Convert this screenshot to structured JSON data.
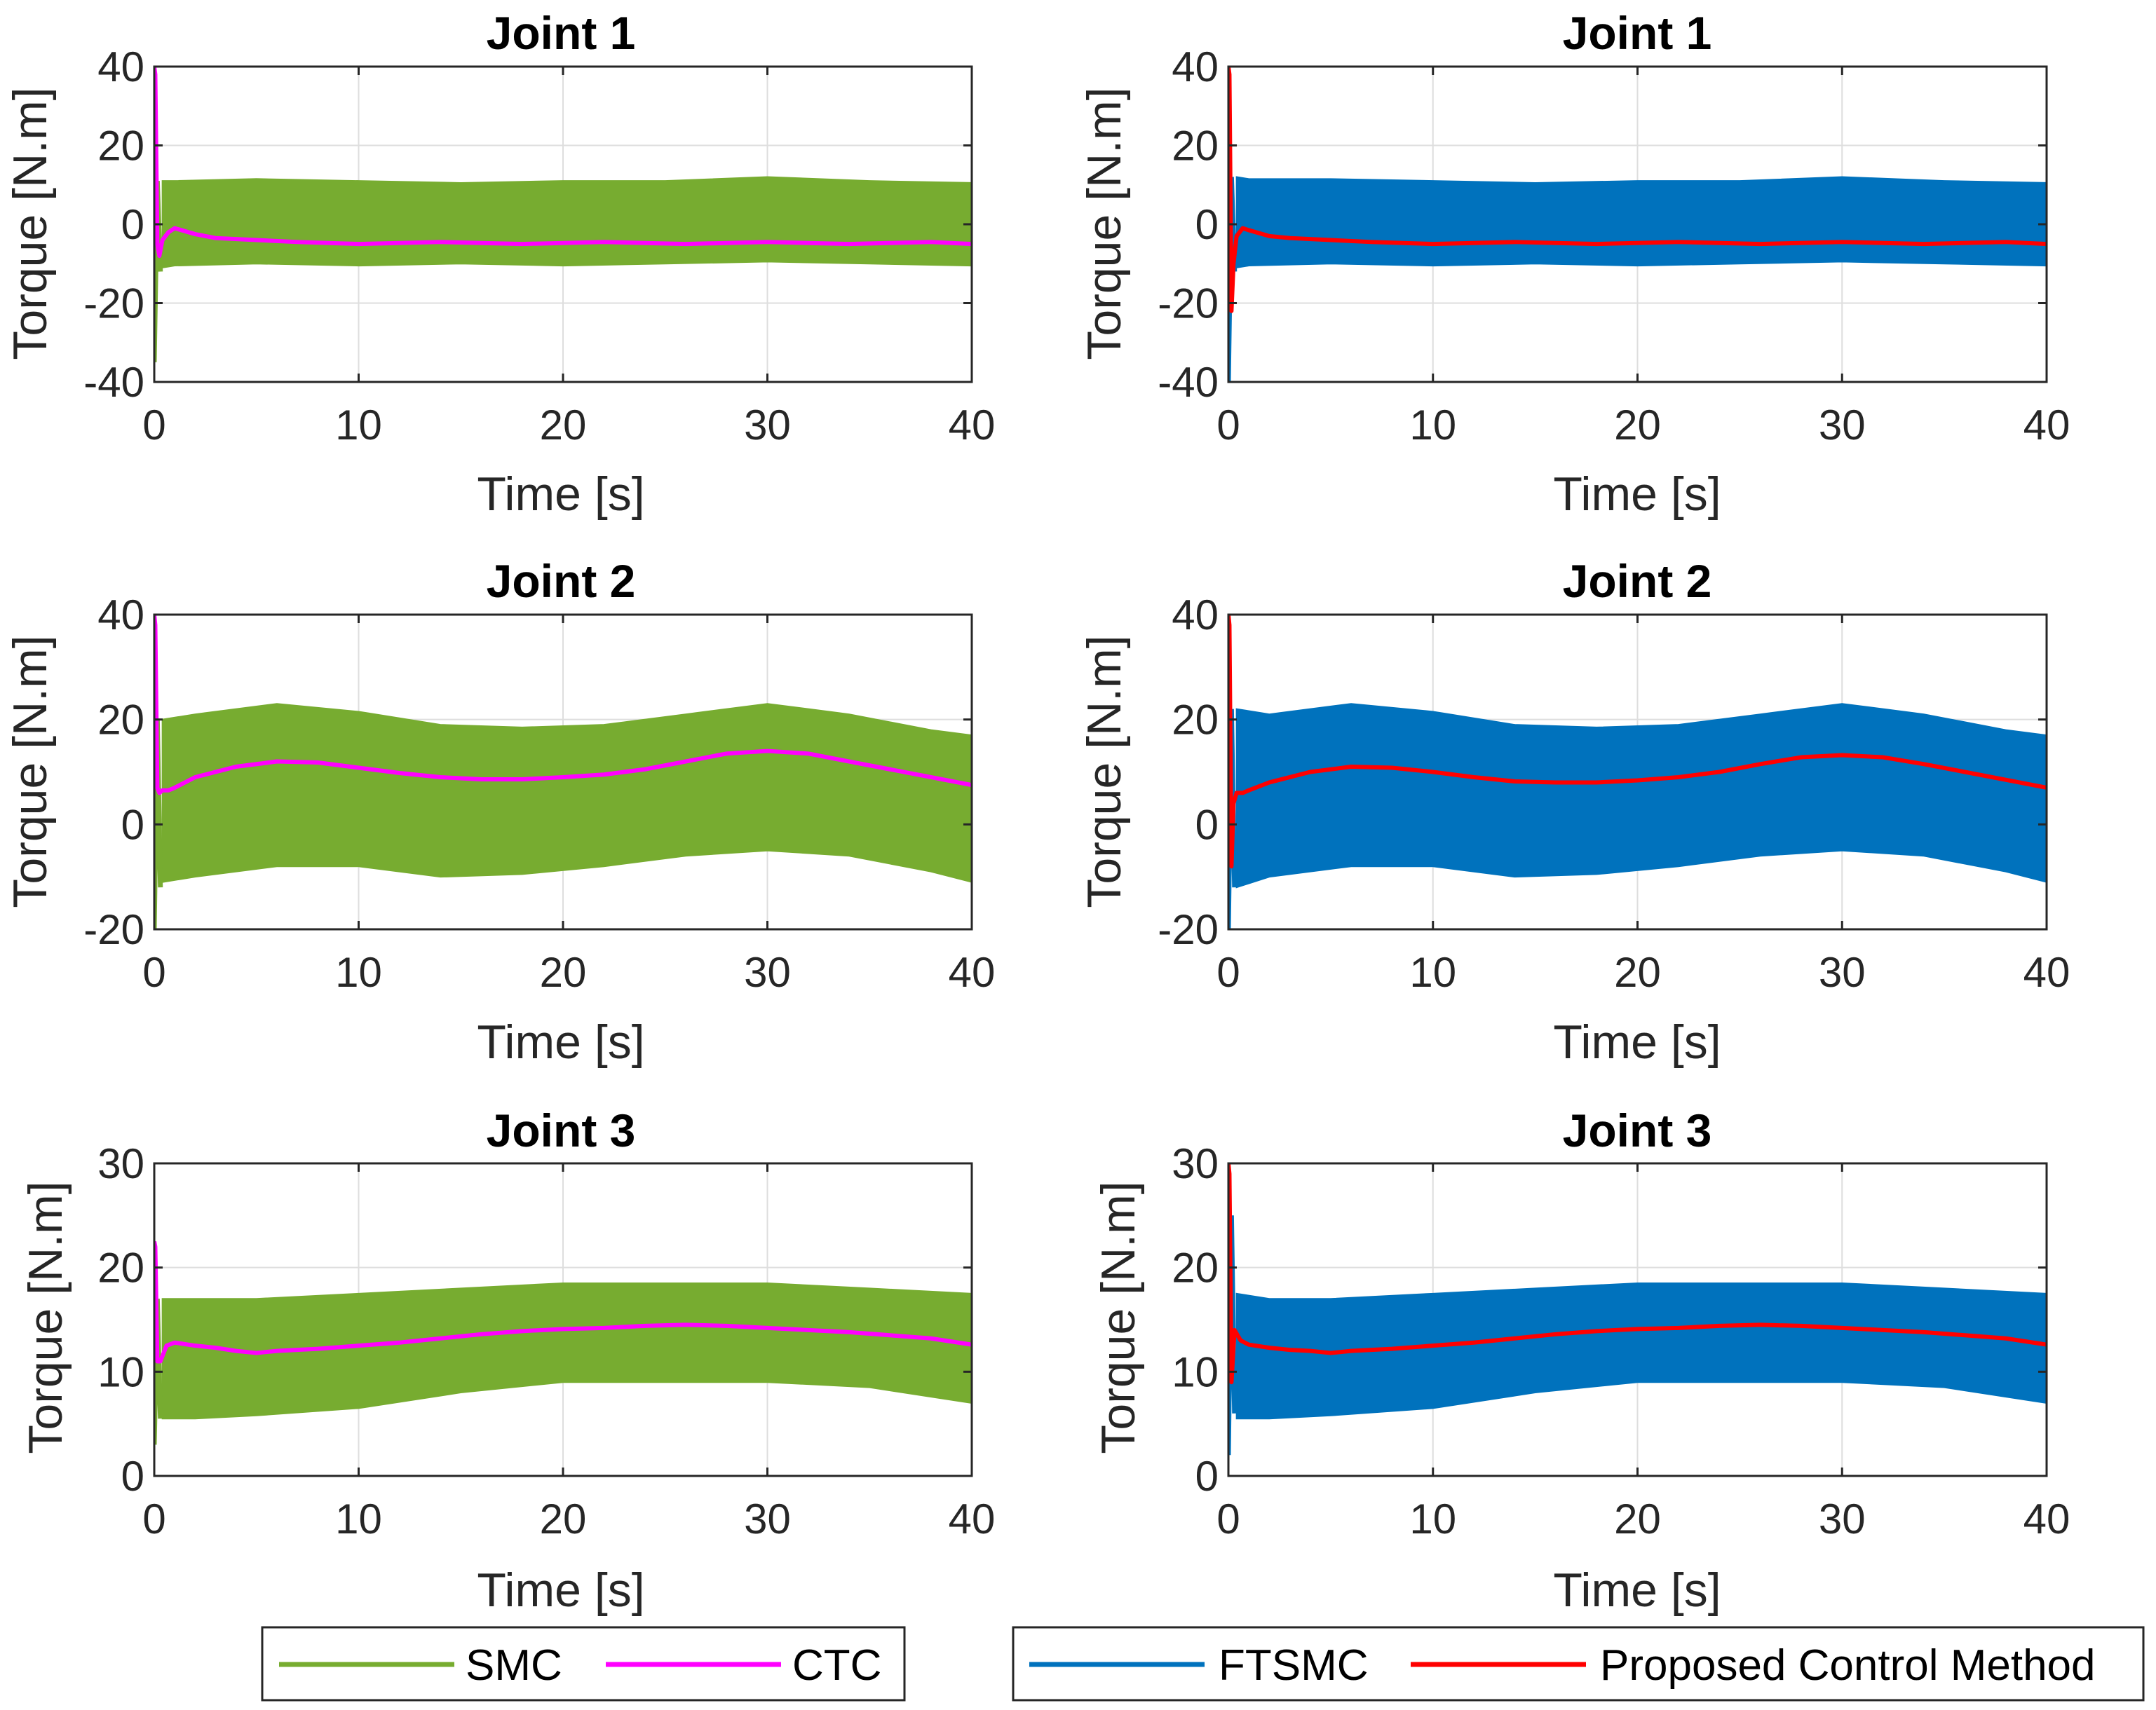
{
  "colors": {
    "smc": "#77ac30",
    "ctc": "#ff00ff",
    "ftsmc": "#0072bd",
    "proposed": "#ff0000",
    "grid": "#dedede",
    "axes": "#262626"
  },
  "legends": [
    {
      "items": [
        {
          "label": "SMC",
          "color_key": "smc"
        },
        {
          "label": "CTC",
          "color_key": "ctc"
        }
      ]
    },
    {
      "items": [
        {
          "label": "FTSMC",
          "color_key": "ftsmc"
        },
        {
          "label": "Proposed Control Method",
          "color_key": "proposed"
        }
      ]
    }
  ],
  "chart_data": [
    {
      "type": "line",
      "title": "Joint 1",
      "xlabel": "Time [s]",
      "ylabel": "Torque [N.m]",
      "xlim": [
        0,
        40
      ],
      "ylim": [
        -40,
        40
      ],
      "xticks": [
        0,
        10,
        20,
        30,
        40
      ],
      "yticks": [
        -40,
        -20,
        0,
        20,
        40
      ],
      "grid": true,
      "band_series": {
        "name": "SMC",
        "color_key": "smc",
        "x": [
          0.4,
          1,
          5,
          10,
          15,
          20,
          25,
          30,
          35,
          40
        ],
        "upper": [
          11,
          11,
          11.5,
          11,
          10.5,
          11,
          11,
          12,
          11,
          10.5
        ],
        "lower": [
          -11,
          -10.5,
          -10,
          -10.5,
          -10,
          -10.5,
          -10,
          -9.5,
          -10,
          -10.5
        ],
        "spike_x": [
          0,
          0.15,
          0.3
        ],
        "spike_y": [
          -35,
          11,
          -12
        ]
      },
      "line_series": {
        "name": "CTC",
        "color_key": "ctc",
        "x": [
          0,
          0.05,
          0.15,
          0.25,
          0.4,
          0.7,
          1,
          2,
          3,
          5,
          7,
          10,
          14,
          18,
          22,
          26,
          30,
          34,
          38,
          40
        ],
        "y": [
          40,
          38,
          -5,
          -8,
          -4,
          -2,
          -1,
          -2.5,
          -3.5,
          -4,
          -4.5,
          -5,
          -4.5,
          -5,
          -4.5,
          -5,
          -4.5,
          -5,
          -4.5,
          -5
        ]
      }
    },
    {
      "type": "line",
      "title": "Joint 1",
      "xlabel": "Time [s]",
      "ylabel": "Torque [N.m]",
      "xlim": [
        0,
        40
      ],
      "ylim": [
        -40,
        40
      ],
      "xticks": [
        0,
        10,
        20,
        30,
        40
      ],
      "yticks": [
        -40,
        -20,
        0,
        20,
        40
      ],
      "grid": true,
      "band_series": {
        "name": "FTSMC",
        "color_key": "ftsmc",
        "x": [
          0.4,
          1,
          5,
          10,
          15,
          20,
          25,
          30,
          35,
          40
        ],
        "upper": [
          12,
          11.5,
          11.5,
          11,
          10.5,
          11,
          11,
          12,
          11,
          10.5
        ],
        "lower": [
          -11,
          -10.5,
          -10,
          -10.5,
          -10,
          -10.5,
          -10,
          -9.5,
          -10,
          -10.5
        ],
        "spike_x": [
          0,
          0.15,
          0.3
        ],
        "spike_y": [
          -40,
          12,
          -12
        ]
      },
      "line_series": {
        "name": "Proposed Control Method",
        "color_key": "proposed",
        "x": [
          0,
          0.05,
          0.15,
          0.25,
          0.4,
          0.7,
          1,
          2,
          3,
          5,
          7,
          10,
          14,
          18,
          22,
          26,
          30,
          34,
          38,
          40
        ],
        "y": [
          40,
          38,
          -22,
          -10,
          -3,
          -1,
          -1.5,
          -3,
          -3.5,
          -4,
          -4.5,
          -5,
          -4.5,
          -5,
          -4.5,
          -5,
          -4.5,
          -5,
          -4.5,
          -5
        ]
      }
    },
    {
      "type": "line",
      "title": "Joint 2",
      "xlabel": "Time [s]",
      "ylabel": "Torque [N.m]",
      "xlim": [
        0,
        40
      ],
      "ylim": [
        -20,
        40
      ],
      "xticks": [
        0,
        10,
        20,
        30,
        40
      ],
      "yticks": [
        -20,
        0,
        20,
        40
      ],
      "grid": true,
      "band_series": {
        "name": "SMC",
        "color_key": "smc",
        "x": [
          0.4,
          2,
          6,
          10,
          14,
          18,
          22,
          26,
          30,
          34,
          38,
          40
        ],
        "upper": [
          20,
          21,
          23,
          21.5,
          19,
          18.5,
          19,
          21,
          23,
          21,
          18,
          17
        ],
        "lower": [
          -11,
          -10,
          -8,
          -8,
          -10,
          -9.5,
          -8,
          -6,
          -5,
          -6,
          -9,
          -11
        ],
        "spike_x": [
          0,
          0.15,
          0.3
        ],
        "spike_y": [
          -20,
          20,
          -12
        ]
      },
      "line_series": {
        "name": "CTC",
        "color_key": "ctc",
        "x": [
          0,
          0.05,
          0.15,
          0.25,
          0.4,
          0.7,
          1,
          2,
          4,
          6,
          8,
          10,
          12,
          14,
          16,
          18,
          20,
          22,
          24,
          26,
          28,
          30,
          32,
          34,
          36,
          38,
          40
        ],
        "y": [
          40,
          38,
          7,
          6,
          6.5,
          6.5,
          7,
          9,
          11,
          12,
          11.8,
          10.8,
          9.8,
          9,
          8.6,
          8.6,
          9,
          9.5,
          10.5,
          12,
          13.5,
          14,
          13.5,
          12,
          10.5,
          9,
          7.5
        ]
      }
    },
    {
      "type": "line",
      "title": "Joint 2",
      "xlabel": "Time [s]",
      "ylabel": "Torque [N.m]",
      "xlim": [
        0,
        40
      ],
      "ylim": [
        -20,
        40
      ],
      "xticks": [
        0,
        10,
        20,
        30,
        40
      ],
      "yticks": [
        -20,
        0,
        20,
        40
      ],
      "grid": true,
      "band_series": {
        "name": "FTSMC",
        "color_key": "ftsmc",
        "x": [
          0.4,
          2,
          6,
          10,
          14,
          18,
          22,
          26,
          30,
          34,
          38,
          40
        ],
        "upper": [
          22,
          21,
          23,
          21.5,
          19,
          18.5,
          19,
          21,
          23,
          21,
          18,
          17
        ],
        "lower": [
          -12,
          -10,
          -8,
          -8,
          -10,
          -9.5,
          -8,
          -6,
          -5,
          -6,
          -9,
          -11
        ],
        "spike_x": [
          0,
          0.15,
          0.3
        ],
        "spike_y": [
          -20,
          22,
          -12
        ]
      },
      "line_series": {
        "name": "Proposed Control Method",
        "color_key": "proposed",
        "x": [
          0,
          0.05,
          0.15,
          0.25,
          0.4,
          0.7,
          1,
          2,
          4,
          6,
          8,
          10,
          12,
          14,
          16,
          18,
          20,
          22,
          24,
          26,
          28,
          30,
          32,
          34,
          36,
          38,
          40
        ],
        "y": [
          40,
          38,
          -8,
          4,
          6,
          6,
          6.5,
          8,
          10,
          11,
          10.8,
          10,
          9,
          8.2,
          8,
          8,
          8.4,
          9,
          10,
          11.5,
          12.8,
          13.2,
          12.8,
          11.5,
          10,
          8.5,
          7
        ]
      }
    },
    {
      "type": "line",
      "title": "Joint 3",
      "xlabel": "Time [s]",
      "ylabel": "Torque [N.m]",
      "xlim": [
        0,
        40
      ],
      "ylim": [
        0,
        30
      ],
      "xticks": [
        0,
        10,
        20,
        30,
        40
      ],
      "yticks": [
        0,
        10,
        20,
        30
      ],
      "grid": true,
      "band_series": {
        "name": "SMC",
        "color_key": "smc",
        "x": [
          0.4,
          2,
          5,
          10,
          15,
          20,
          25,
          30,
          35,
          40
        ],
        "upper": [
          17,
          17,
          17,
          17.5,
          18,
          18.5,
          18.5,
          18.5,
          18,
          17.5
        ],
        "lower": [
          5.5,
          5.5,
          5.8,
          6.5,
          8,
          9,
          9,
          9,
          8.5,
          7
        ],
        "spike_x": [
          0,
          0.15,
          0.3
        ],
        "spike_y": [
          3,
          17,
          5.5
        ]
      },
      "line_series": {
        "name": "CTC",
        "color_key": "ctc",
        "x": [
          0,
          0.05,
          0.15,
          0.3,
          0.6,
          1,
          2,
          3,
          4,
          5,
          6,
          8,
          10,
          12,
          14,
          16,
          18,
          20,
          22,
          24,
          26,
          28,
          30,
          32,
          34,
          36,
          38,
          40
        ],
        "y": [
          22.5,
          22,
          11,
          11,
          12.5,
          12.8,
          12.5,
          12.3,
          12,
          11.8,
          12,
          12.2,
          12.5,
          12.8,
          13.2,
          13.6,
          13.9,
          14.1,
          14.2,
          14.4,
          14.5,
          14.4,
          14.2,
          14,
          13.8,
          13.5,
          13.2,
          12.6
        ]
      }
    },
    {
      "type": "line",
      "title": "Joint 3",
      "xlabel": "Time [s]",
      "ylabel": "Torque [N.m]",
      "xlim": [
        0,
        40
      ],
      "ylim": [
        0,
        30
      ],
      "xticks": [
        0,
        10,
        20,
        30,
        40
      ],
      "yticks": [
        0,
        10,
        20,
        30
      ],
      "grid": true,
      "band_series": {
        "name": "FTSMC",
        "color_key": "ftsmc",
        "x": [
          0.4,
          2,
          5,
          10,
          15,
          20,
          25,
          30,
          35,
          40
        ],
        "upper": [
          17.5,
          17,
          17,
          17.5,
          18,
          18.5,
          18.5,
          18.5,
          18,
          17.5
        ],
        "lower": [
          5.5,
          5.5,
          5.8,
          6.5,
          8,
          9,
          9,
          9,
          8.5,
          7
        ],
        "spike_x": [
          0,
          0.15,
          0.3
        ],
        "spike_y": [
          2,
          25,
          6
        ]
      },
      "line_series": {
        "name": "Proposed Control Method",
        "color_key": "proposed",
        "x": [
          0,
          0.05,
          0.15,
          0.3,
          0.6,
          1,
          2,
          3,
          4,
          5,
          6,
          8,
          10,
          12,
          14,
          16,
          18,
          20,
          22,
          24,
          26,
          28,
          30,
          32,
          34,
          36,
          38,
          40
        ],
        "y": [
          30,
          29,
          9,
          14,
          13,
          12.6,
          12.3,
          12.1,
          12,
          11.8,
          12,
          12.2,
          12.5,
          12.8,
          13.2,
          13.6,
          13.9,
          14.1,
          14.2,
          14.4,
          14.5,
          14.4,
          14.2,
          14,
          13.8,
          13.5,
          13.2,
          12.6
        ]
      }
    }
  ]
}
